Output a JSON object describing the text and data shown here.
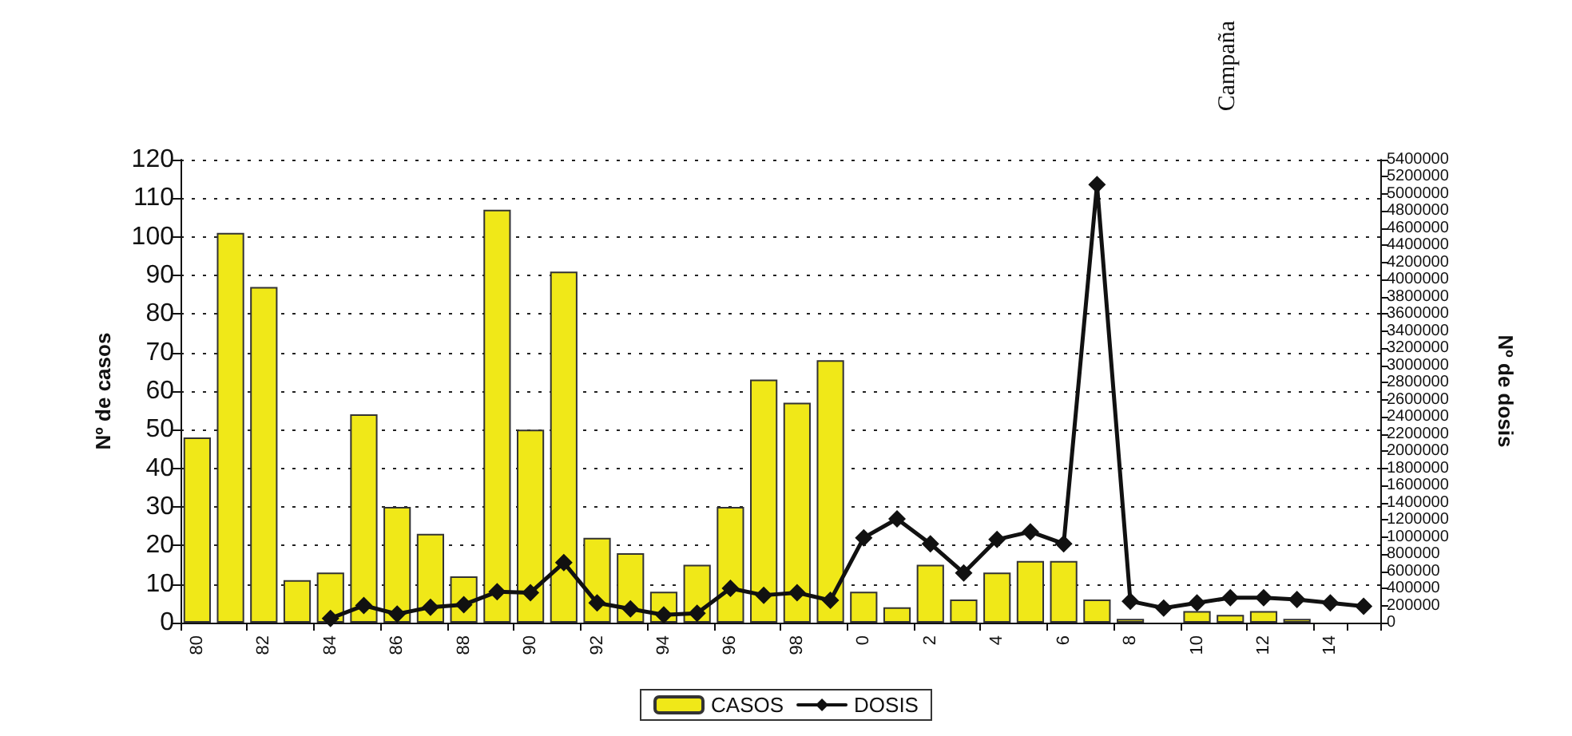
{
  "chart_data": {
    "type": "bar",
    "ylabel": "Nº de casos",
    "y2label": "Nº de dosis",
    "annotations": [
      "Campaña"
    ],
    "categories": [
      "80",
      null,
      "82",
      null,
      "84",
      null,
      "86",
      null,
      "88",
      null,
      "90",
      null,
      "92",
      null,
      "94",
      null,
      "96",
      null,
      "98",
      null,
      "0",
      null,
      "2",
      null,
      "4",
      null,
      "6",
      null,
      "8",
      null,
      "10",
      null,
      "12",
      null,
      "14",
      null
    ],
    "series": [
      {
        "name": "CASOS",
        "color": "#f0e818",
        "values": [
          48,
          101,
          87,
          11,
          13,
          54,
          30,
          23,
          12,
          107,
          50,
          91,
          22,
          18,
          8,
          15,
          30,
          63,
          57,
          68,
          8,
          4,
          15,
          6,
          13,
          16,
          16,
          6,
          1,
          0,
          3,
          2,
          3,
          1,
          0,
          0
        ]
      },
      {
        "name": "DOSIS",
        "type": "line",
        "axis": "y2",
        "color": "#111111",
        "marker": "diamond",
        "values": [
          null,
          null,
          null,
          null,
          50000,
          200000,
          100000,
          180000,
          210000,
          360000,
          350000,
          700000,
          230000,
          160000,
          90000,
          110000,
          400000,
          320000,
          350000,
          260000,
          990000,
          1210000,
          920000,
          580000,
          970000,
          1060000,
          920000,
          5110000,
          250000,
          170000,
          230000,
          290000,
          290000,
          270000,
          230000,
          190000
        ]
      }
    ],
    "ylim": [
      0,
      120
    ],
    "yticks": [
      0,
      10,
      20,
      30,
      40,
      50,
      60,
      70,
      80,
      90,
      100,
      110,
      120
    ],
    "y2lim": [
      0,
      5400000
    ],
    "y2ticks": [
      0,
      200000,
      400000,
      600000,
      800000,
      1000000,
      1200000,
      1400000,
      1600000,
      1800000,
      2000000,
      2200000,
      2400000,
      2600000,
      2800000,
      3000000,
      3200000,
      3400000,
      3600000,
      3800000,
      4000000,
      4200000,
      4400000,
      4600000,
      4800000,
      5000000,
      5200000,
      5400000
    ],
    "grid": "y",
    "legend": "bottom"
  }
}
